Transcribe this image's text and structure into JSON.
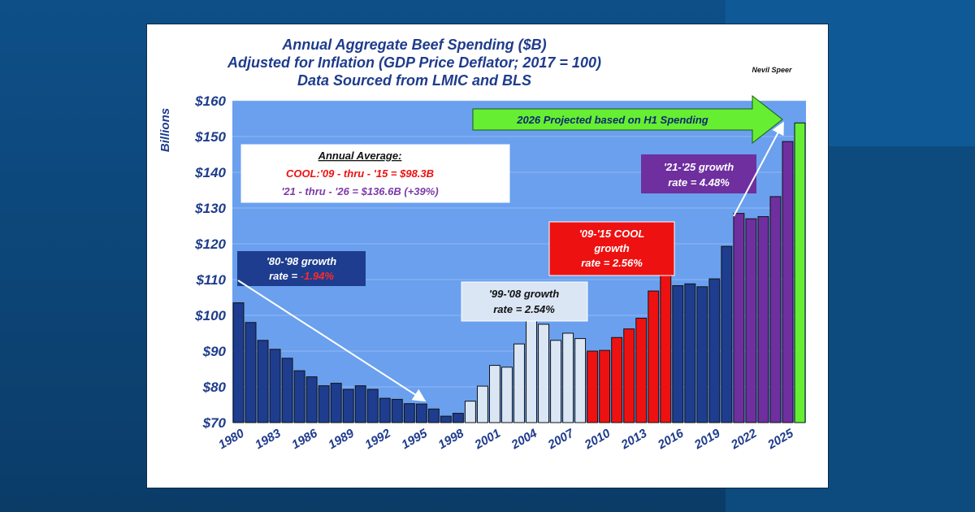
{
  "chart_data": {
    "type": "bar",
    "title_lines": [
      "Annual Aggregate Beef Spending ($B)",
      "Adjusted for Inflation (GDP Price Deflator; 2017 = 100)",
      "Data Sourced from LMIC and BLS"
    ],
    "author": "Nevil Speer",
    "ylabel": "Billions",
    "ylim": [
      70,
      160
    ],
    "y_ticks": [
      "$70",
      "$80",
      "$90",
      "$100",
      "$110",
      "$120",
      "$130",
      "$140",
      "$150",
      "$160"
    ],
    "x_tick_labels": [
      "1980",
      "1983",
      "1986",
      "1989",
      "1992",
      "1995",
      "1998",
      "2001",
      "2004",
      "2007",
      "2010",
      "2013",
      "2016",
      "2019",
      "2022",
      "2025"
    ],
    "x": [
      1980,
      1981,
      1982,
      1983,
      1984,
      1985,
      1986,
      1987,
      1988,
      1989,
      1990,
      1991,
      1992,
      1993,
      1994,
      1995,
      1996,
      1997,
      1998,
      1999,
      2000,
      2001,
      2002,
      2003,
      2004,
      2005,
      2006,
      2007,
      2008,
      2009,
      2010,
      2011,
      2012,
      2013,
      2014,
      2015,
      2016,
      2017,
      2018,
      2019,
      2020,
      2021,
      2022,
      2023,
      2024,
      2025,
      2026
    ],
    "values": [
      103.5,
      98,
      93,
      90.5,
      88,
      84.5,
      82.8,
      80.3,
      81,
      79.3,
      80.3,
      79.3,
      76.8,
      76.5,
      75.3,
      75.2,
      73.8,
      71.8,
      72.6,
      76,
      80.2,
      86,
      85.5,
      92,
      98.5,
      97.5,
      93,
      95,
      93.5,
      90,
      90.2,
      93.8,
      96.2,
      99.2,
      106.8,
      111.5,
      108.3,
      108.8,
      108,
      110.2,
      119.3,
      128.5,
      127,
      127.6,
      133.2,
      148.6,
      153.8
    ],
    "period_colors": [
      "#1e3d8f",
      "#1e3d8f",
      "#1e3d8f",
      "#1e3d8f",
      "#1e3d8f",
      "#1e3d8f",
      "#1e3d8f",
      "#1e3d8f",
      "#1e3d8f",
      "#1e3d8f",
      "#1e3d8f",
      "#1e3d8f",
      "#1e3d8f",
      "#1e3d8f",
      "#1e3d8f",
      "#1e3d8f",
      "#1e3d8f",
      "#1e3d8f",
      "#1e3d8f",
      "#dbe6f4",
      "#dbe6f4",
      "#dbe6f4",
      "#dbe6f4",
      "#dbe6f4",
      "#dbe6f4",
      "#dbe6f4",
      "#dbe6f4",
      "#dbe6f4",
      "#dbe6f4",
      "#ee1111",
      "#ee1111",
      "#ee1111",
      "#ee1111",
      "#ee1111",
      "#ee1111",
      "#ee1111",
      "#1e3d8f",
      "#1e3d8f",
      "#1e3d8f",
      "#1e3d8f",
      "#1e3d8f",
      "#6f2f9f",
      "#6f2f9f",
      "#6f2f9f",
      "#6f2f9f",
      "#6f2f9f",
      "#66ee33"
    ],
    "plot_background": "#6aa0ee",
    "annotations": {
      "average": {
        "heading": "Annual Average:",
        "cool_line": "COOL:'09 - thru - '15  = $98.3B",
        "recent_line": "'21 - thru - '26  = $136.6B (+39%)"
      },
      "growth_80_98": {
        "line1": "'80-'98 growth",
        "line2_prefix": "rate = ",
        "line2_value": "-1.94%"
      },
      "growth_99_08": {
        "line1": "'99-'08 growth",
        "line2": "rate = 2.54%"
      },
      "growth_09_15": {
        "line1": "'09-'15 COOL",
        "line2": "growth",
        "line3": "rate = 2.56%"
      },
      "growth_21_25": {
        "line1": "'21-'25 growth",
        "line2": "rate = 4.48%"
      },
      "projection": "2026 Projected based on H1 Spending"
    },
    "colors": {
      "title": "#1f3c8c",
      "dark_blue": "#1e3d8f",
      "light_blue": "#dbe6f4",
      "red": "#ee1111",
      "purple": "#6f2f9f",
      "green": "#66ee33",
      "neg_rate": "#ff2a2a"
    }
  }
}
